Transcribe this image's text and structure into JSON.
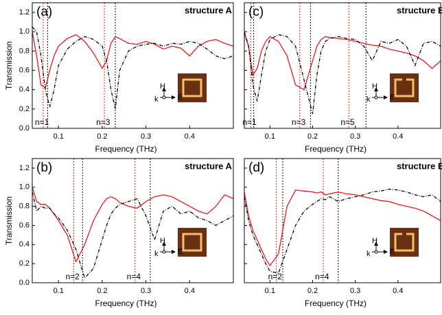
{
  "chart_data": [
    {
      "type": "line",
      "label": "(a)",
      "title": "structure A",
      "ylabel": "Transmission",
      "xlabel": "Frequency (THz)",
      "xlim": [
        0.04,
        0.5
      ],
      "ylim": [
        0,
        1.3
      ],
      "xticks": [
        0.1,
        0.2,
        0.3,
        0.4
      ],
      "yticks": [
        {
          "value": 0,
          "label": "0.0"
        },
        0.2,
        0.4,
        0.6,
        0.8,
        {
          "value": 1,
          "label": "1.0"
        },
        1.2
      ],
      "x": [
        0.04,
        0.05,
        0.06,
        0.07,
        0.08,
        0.09,
        0.1,
        0.12,
        0.14,
        0.16,
        0.18,
        0.2,
        0.21,
        0.22,
        0.23,
        0.24,
        0.26,
        0.28,
        0.3,
        0.32,
        0.34,
        0.36,
        0.38,
        0.4,
        0.42,
        0.44,
        0.46,
        0.48,
        0.5
      ],
      "series": [
        {
          "color": "#e41a1c",
          "linestyle": "solid",
          "values": [
            1.0,
            0.75,
            0.45,
            0.42,
            0.6,
            0.75,
            0.85,
            0.93,
            0.97,
            0.9,
            0.78,
            0.62,
            0.7,
            0.88,
            0.95,
            0.93,
            0.88,
            0.87,
            0.9,
            0.87,
            0.82,
            0.85,
            0.83,
            0.75,
            0.85,
            0.9,
            0.92,
            0.88,
            0.85
          ]
        },
        {
          "color": "#000000",
          "linestyle": "dash-dot",
          "values": [
            1.05,
            1.0,
            0.75,
            0.4,
            0.22,
            0.4,
            0.65,
            0.82,
            0.9,
            0.95,
            0.92,
            0.85,
            0.7,
            0.4,
            0.2,
            0.6,
            0.8,
            0.85,
            0.87,
            0.88,
            0.85,
            0.88,
            0.87,
            0.9,
            0.88,
            0.82,
            0.75,
            0.72,
            0.75
          ]
        }
      ],
      "vlines": [
        {
          "x": 0.065,
          "color": "#e41a1c",
          "label": "n=1"
        },
        {
          "x": 0.075,
          "color": "#000000"
        },
        {
          "x": 0.205,
          "color": "#e41a1c",
          "label": "n=3"
        },
        {
          "x": 0.23,
          "color": "#000000"
        }
      ],
      "inset_labels": [
        "H",
        "k",
        "E"
      ]
    },
    {
      "type": "line",
      "label": "(b)",
      "title": "structure A",
      "ylabel": "Transmission",
      "xlabel": "Frequency (THz)",
      "xlim": [
        0.04,
        0.5
      ],
      "ylim": [
        0,
        1.3
      ],
      "xticks": [
        0.1,
        0.2,
        0.3,
        0.4
      ],
      "yticks": [
        {
          "value": 0,
          "label": "0.0"
        },
        0.2,
        0.4,
        0.6,
        0.8,
        {
          "value": 1,
          "label": "1.0"
        },
        1.2
      ],
      "x": [
        0.04,
        0.05,
        0.06,
        0.07,
        0.08,
        0.09,
        0.1,
        0.12,
        0.14,
        0.16,
        0.18,
        0.2,
        0.21,
        0.22,
        0.23,
        0.24,
        0.26,
        0.28,
        0.3,
        0.32,
        0.34,
        0.36,
        0.38,
        0.4,
        0.42,
        0.44,
        0.46,
        0.48,
        0.5
      ],
      "series": [
        {
          "color": "#e41a1c",
          "linestyle": "solid",
          "values": [
            1.0,
            0.85,
            0.82,
            0.82,
            0.78,
            0.72,
            0.65,
            0.5,
            0.22,
            0.4,
            0.65,
            0.82,
            0.88,
            0.9,
            0.88,
            0.84,
            0.8,
            0.78,
            0.85,
            0.9,
            0.92,
            0.9,
            0.85,
            0.8,
            0.75,
            0.72,
            0.8,
            0.92,
            0.88
          ]
        },
        {
          "color": "#000000",
          "linestyle": "dash-dot",
          "values": [
            0.95,
            0.75,
            0.8,
            0.78,
            0.78,
            0.72,
            0.68,
            0.55,
            0.35,
            0.05,
            0.15,
            0.45,
            0.6,
            0.72,
            0.78,
            0.82,
            0.85,
            0.88,
            0.7,
            0.45,
            0.75,
            0.8,
            0.72,
            0.75,
            0.68,
            0.65,
            0.6,
            0.65,
            0.7
          ]
        }
      ],
      "vlines": [
        {
          "x": 0.135,
          "color": "#e41a1c",
          "label": "n=2"
        },
        {
          "x": 0.155,
          "color": "#000000"
        },
        {
          "x": 0.275,
          "color": "#e41a1c",
          "label": "n=4"
        },
        {
          "x": 0.31,
          "color": "#000000"
        }
      ],
      "inset_labels": [
        "H",
        "k",
        "E"
      ]
    },
    {
      "type": "line",
      "label": "(c)",
      "title": "structure B",
      "xlabel": "Frequency (THz)",
      "xlim": [
        0.04,
        0.5
      ],
      "ylim": [
        0,
        1.3
      ],
      "xticks": [
        0.1,
        0.2,
        0.3,
        0.4
      ],
      "yticks": [
        0,
        0.2,
        0.4,
        0.6,
        0.8,
        1,
        1.2
      ],
      "x": [
        0.04,
        0.05,
        0.06,
        0.07,
        0.08,
        0.09,
        0.1,
        0.12,
        0.14,
        0.16,
        0.18,
        0.2,
        0.21,
        0.22,
        0.23,
        0.24,
        0.26,
        0.28,
        0.3,
        0.32,
        0.34,
        0.36,
        0.38,
        0.4,
        0.42,
        0.44,
        0.46,
        0.48,
        0.5
      ],
      "series": [
        {
          "color": "#e41a1c",
          "linestyle": "solid",
          "values": [
            0.98,
            0.85,
            0.55,
            0.62,
            0.8,
            0.9,
            0.95,
            0.9,
            0.75,
            0.45,
            0.4,
            0.7,
            0.85,
            0.92,
            0.95,
            0.94,
            0.93,
            0.92,
            0.9,
            0.88,
            0.86,
            0.85,
            0.82,
            0.8,
            0.78,
            0.75,
            0.7,
            0.62,
            0.7
          ]
        },
        {
          "color": "#000000",
          "linestyle": "dash-dot",
          "values": [
            1.0,
            0.85,
            0.45,
            0.28,
            0.55,
            0.8,
            0.92,
            0.97,
            0.95,
            0.85,
            0.5,
            0.15,
            0.55,
            0.8,
            0.9,
            0.93,
            0.95,
            0.93,
            0.92,
            0.85,
            0.7,
            0.9,
            0.88,
            0.92,
            0.85,
            0.65,
            0.88,
            0.9,
            0.85
          ]
        }
      ],
      "vlines": [
        {
          "x": 0.055,
          "color": "#e41a1c",
          "label": "n=1"
        },
        {
          "x": 0.062,
          "color": "#000000"
        },
        {
          "x": 0.17,
          "color": "#e41a1c",
          "label": "n=3"
        },
        {
          "x": 0.195,
          "color": "#000000"
        },
        {
          "x": 0.285,
          "color": "#e41a1c",
          "label": "n=5"
        },
        {
          "x": 0.325,
          "color": "#000000"
        }
      ],
      "inset_labels": [
        "H",
        "k",
        "E"
      ]
    },
    {
      "type": "line",
      "label": "(d)",
      "title": "structure B",
      "xlabel": "Frequency (THz)",
      "xlim": [
        0.04,
        0.5
      ],
      "ylim": [
        0,
        1.3
      ],
      "xticks": [
        0.1,
        0.2,
        0.3,
        0.4
      ],
      "yticks": [
        0,
        0.2,
        0.4,
        0.6,
        0.8,
        1,
        1.2
      ],
      "x": [
        0.04,
        0.05,
        0.06,
        0.07,
        0.08,
        0.09,
        0.1,
        0.12,
        0.14,
        0.16,
        0.18,
        0.2,
        0.21,
        0.22,
        0.23,
        0.24,
        0.26,
        0.28,
        0.3,
        0.32,
        0.34,
        0.36,
        0.38,
        0.4,
        0.42,
        0.44,
        0.46,
        0.48,
        0.5
      ],
      "series": [
        {
          "color": "#e41a1c",
          "linestyle": "solid",
          "values": [
            0.95,
            0.7,
            0.55,
            0.45,
            0.35,
            0.25,
            0.18,
            0.3,
            0.8,
            0.97,
            0.96,
            0.95,
            0.94,
            0.95,
            0.92,
            0.93,
            0.95,
            0.93,
            0.92,
            0.9,
            0.88,
            0.86,
            0.85,
            0.82,
            0.8,
            0.78,
            0.75,
            0.7,
            0.65
          ]
        },
        {
          "color": "#000000",
          "linestyle": "dash-dot",
          "values": [
            0.9,
            0.65,
            0.5,
            0.4,
            0.3,
            0.2,
            0.12,
            0.1,
            0.35,
            0.6,
            0.75,
            0.82,
            0.85,
            0.88,
            0.87,
            0.9,
            0.85,
            0.88,
            0.9,
            0.92,
            0.95,
            0.96,
            0.98,
            0.97,
            0.95,
            0.92,
            0.9,
            0.92,
            0.85
          ]
        }
      ],
      "vlines": [
        {
          "x": 0.115,
          "color": "#e41a1c",
          "label": "n=2"
        },
        {
          "x": 0.13,
          "color": "#000000"
        },
        {
          "x": 0.225,
          "color": "#e41a1c",
          "label": "n=4"
        },
        {
          "x": 0.26,
          "color": "#000000"
        }
      ],
      "inset_labels": [
        "H",
        "k",
        "E"
      ]
    }
  ]
}
